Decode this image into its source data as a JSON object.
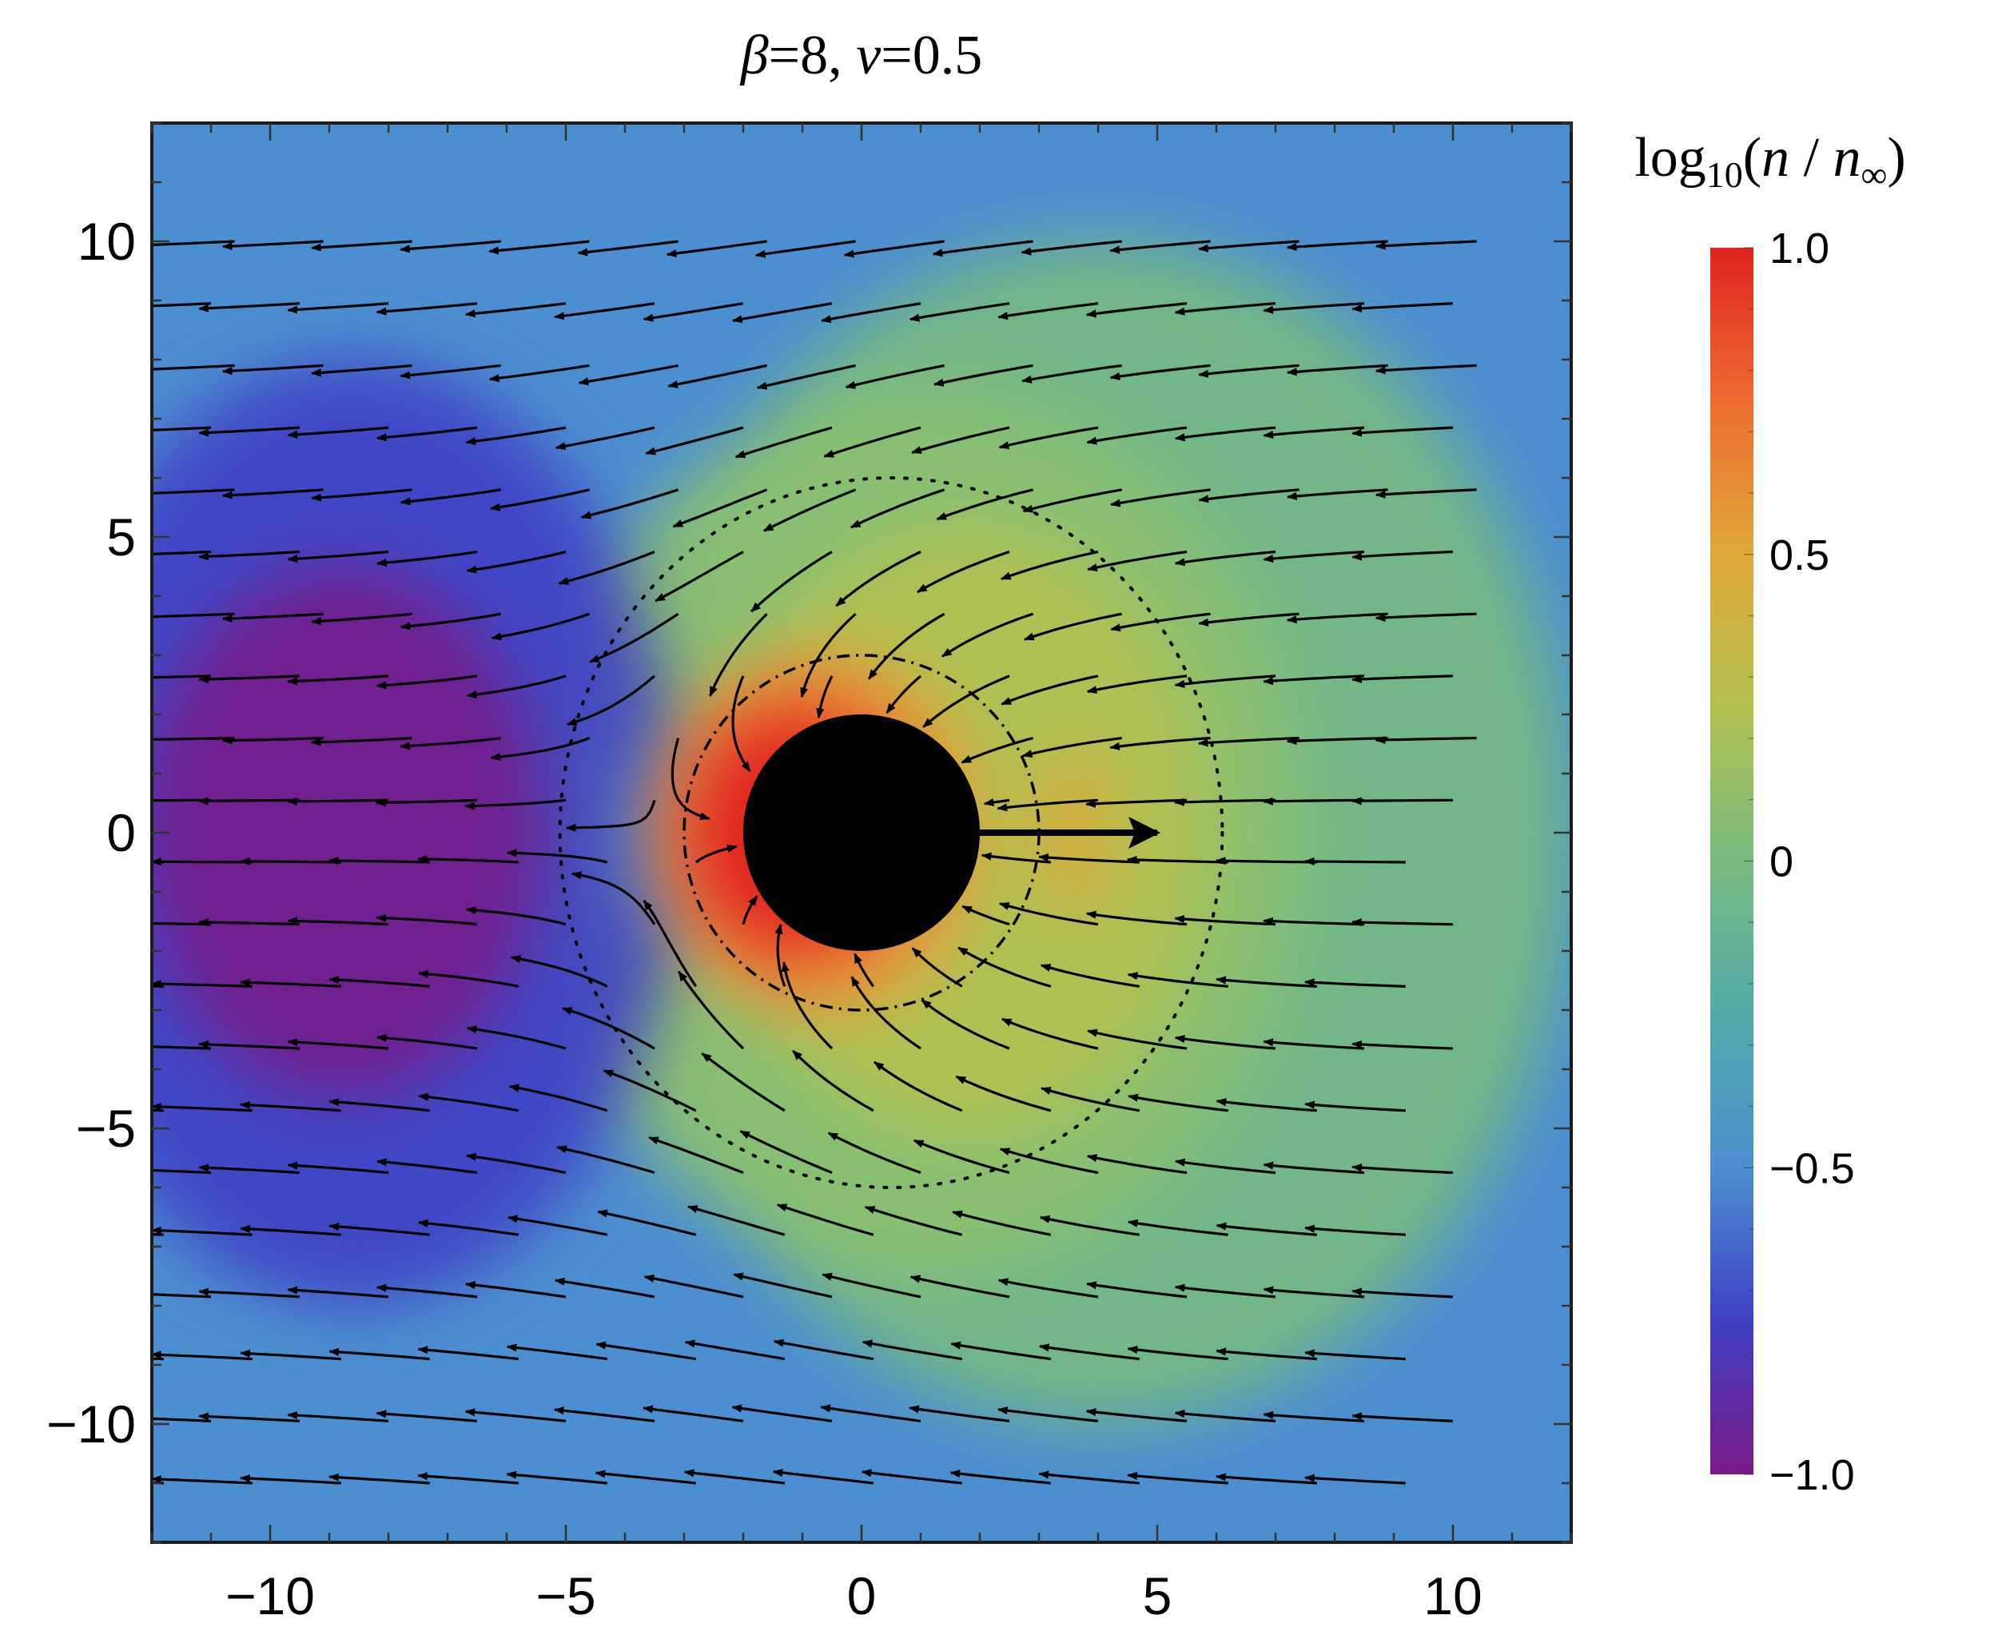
{
  "chart_data": {
    "type": "heatmap",
    "title": "β=8, v=0.5",
    "title_parts": {
      "beta_symbol": "β",
      "beta_value": "=8, ",
      "v_symbol": "v",
      "v_value": "=0.5"
    },
    "xlim": [
      -12,
      12
    ],
    "ylim": [
      -12,
      12
    ],
    "x_ticks": [
      -10,
      -5,
      0,
      5,
      10
    ],
    "y_ticks": [
      -10,
      -5,
      0,
      5,
      10
    ],
    "x_tick_labels": [
      "−10",
      "−5",
      "0",
      "5",
      "10"
    ],
    "y_tick_labels": [
      "−10",
      "−5",
      "0",
      "5",
      "10"
    ],
    "grid": false,
    "colorbar": {
      "title_parts": {
        "log": "log",
        "base": "10",
        "open": "(",
        "n1": "n",
        "slash": " / ",
        "n2": "n",
        "inf": "∞",
        "close": ")"
      },
      "range": [
        -1.0,
        1.0
      ],
      "ticks": [
        1.0,
        0.5,
        0,
        -0.5,
        -1.0
      ],
      "tick_labels": [
        "1.0",
        "0.5",
        "0",
        "−0.5",
        "−1.0"
      ],
      "colormap": [
        "#7a1a86",
        "#3f3fc4",
        "#4c8fd0",
        "#52aaa8",
        "#78bb80",
        "#b2c150",
        "#e0a83a",
        "#ed6c30",
        "#e02320"
      ],
      "placement": "right"
    },
    "velocity_arrow": {
      "from": [
        2.0,
        0
      ],
      "to": [
        5.0,
        0
      ]
    },
    "black_hole": {
      "center": [
        0,
        0
      ],
      "radius": 2.0
    },
    "inner_dashdot_circle": {
      "center": [
        0,
        0
      ],
      "radius": 3.0
    },
    "dotted_contour_note": "offset closed dotted curve passing x≈-6 and x≈6 on the axis, y≈±6",
    "background_color": "#4c8fd0"
  }
}
